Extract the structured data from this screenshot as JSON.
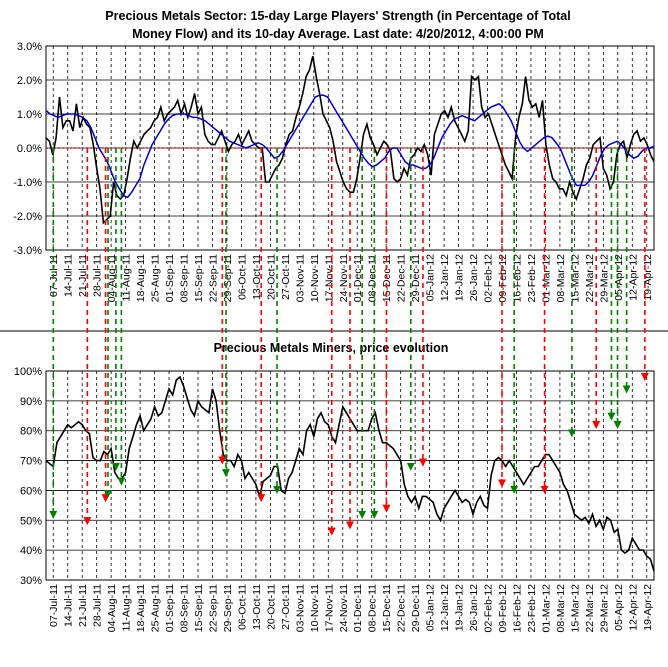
{
  "colors": {
    "strength": "#000000",
    "average": "#0000cc",
    "zero_line": "#cc0000",
    "red_arrow": "#ff0000",
    "green_arrow": "#008000",
    "grid": "#000000"
  },
  "chart_data": [
    {
      "type": "line",
      "title_line1": "Precious Metals Sector: 15-day Large Players' Strength (in Percentage of Total",
      "title_line2": "Money Flow) and its 10-day Average. Last date: 4/20/2012, 4:00:00 PM",
      "xlabel": "",
      "ylabel": "",
      "ylim": [
        -3,
        3
      ],
      "y_ticks": [
        "-3.0%",
        "-2.0%",
        "-1.0%",
        "0.0%",
        "1.0%",
        "2.0%",
        "3.0%"
      ],
      "x_ticks": [
        "07-Jul-11",
        "14-Jul-11",
        "21-Jul-11",
        "28-Jul-11",
        "04-Aug-11",
        "11-Aug-11",
        "18-Aug-11",
        "25-Aug-11",
        "01-Sep-11",
        "08-Sep-11",
        "15-Sep-11",
        "22-Sep-11",
        "29-Sep-11",
        "06-Oct-11",
        "13-Oct-11",
        "20-Oct-11",
        "27-Oct-11",
        "03-Nov-11",
        "10-Nov-11",
        "17-Nov-11",
        "24-Nov-11",
        "01-Dec-11",
        "08-Dec-11",
        "15-Dec-11",
        "22-Dec-11",
        "29-Dec-11",
        "05-Jan-12",
        "12-Jan-12",
        "19-Jan-12",
        "26-Jan-12",
        "02-Feb-12",
        "09-Feb-12",
        "16-Feb-12",
        "23-Feb-12",
        "01-Mar-12",
        "08-Mar-12",
        "15-Mar-12",
        "22-Mar-12",
        "29-Mar-12",
        "05-Apr-12",
        "12-Apr-12",
        "19-Apr-12"
      ],
      "series": [
        {
          "name": "",
          "color_key": "strength",
          "values": [
            0.3,
            0.2,
            -0.2,
            0.3,
            1.5,
            0.6,
            0.8,
            0.8,
            0.5,
            1.3,
            0.6,
            0.9,
            0.7,
            0.6,
            0.1,
            -0.6,
            -1.2,
            -2.2,
            -2.1,
            -2.0,
            -1.0,
            -1.4,
            -1.5,
            -1.4,
            -0.9,
            -0.3,
            0.2,
            0.0,
            0.2,
            0.4,
            0.5,
            0.6,
            0.8,
            0.9,
            1.2,
            0.8,
            1.0,
            1.1,
            1.2,
            1.4,
            1.0,
            1.3,
            0.9,
            1.2,
            1.6,
            1.0,
            1.2,
            0.4,
            0.2,
            0.1,
            0.1,
            0.3,
            0.5,
            0.2,
            -0.1,
            0.1,
            0.2,
            0.4,
            0.1,
            0.3,
            0.5,
            0.2,
            0.1,
            0.0,
            0.0,
            -1.0,
            -1.0,
            -0.8,
            -0.6,
            -0.5,
            -0.3,
            0.1,
            0.4,
            0.5,
            0.9,
            1.2,
            1.6,
            2.1,
            2.3,
            2.7,
            2.1,
            1.6,
            1.0,
            0.8,
            0.6,
            0.2,
            -0.4,
            -0.7,
            -1.0,
            -1.2,
            -1.3,
            -1.3,
            -0.9,
            -0.3,
            0.4,
            0.7,
            0.3,
            0.1,
            -0.2,
            0.0,
            0.2,
            0.1,
            -0.1,
            -0.9,
            -1.0,
            -0.9,
            -0.6,
            -0.8,
            -0.3,
            -0.2,
            0.0,
            -0.1,
            0.1,
            -0.2,
            -0.8,
            0.4,
            0.7,
            1.0,
            1.1,
            0.9,
            1.2,
            0.8,
            0.6,
            0.4,
            0.2,
            0.5,
            2.1,
            2.0,
            2.1,
            1.2,
            0.9,
            1.0,
            0.7,
            0.4,
            0.1,
            -0.2,
            -0.5,
            -0.7,
            -0.9,
            0.3,
            0.9,
            1.3,
            2.1,
            1.4,
            1.2,
            1.3,
            0.9,
            1.4,
            0.1,
            -0.5,
            -0.9,
            -1.0,
            -1.2,
            -1.2,
            -1.4,
            -1.0,
            -1.3,
            -1.5,
            -1.2,
            -0.9,
            -0.5,
            -0.3,
            0.1,
            0.2,
            0.3,
            -0.6,
            -0.8,
            -1.2,
            -1.0,
            -0.2,
            0.1,
            0.2,
            -0.3,
            0.1,
            0.4,
            0.5,
            0.2,
            0.3,
            0.1,
            -0.2,
            -0.4
          ]
        },
        {
          "name": "",
          "color_key": "average",
          "values": [
            1.1,
            1.0,
            0.95,
            0.9,
            0.95,
            1.0,
            1.0,
            1.0,
            0.95,
            0.9,
            0.8,
            0.6,
            0.3,
            0.0,
            -0.2,
            -0.4,
            -0.7,
            -1.0,
            -1.2,
            -1.4,
            -1.45,
            -1.3,
            -1.1,
            -0.9,
            -0.5,
            -0.2,
            0.1,
            0.3,
            0.5,
            0.7,
            0.85,
            0.95,
            1.0,
            1.0,
            1.0,
            0.95,
            0.9,
            0.9,
            0.85,
            0.8,
            0.7,
            0.6,
            0.5,
            0.4,
            0.3,
            0.2,
            0.15,
            0.1,
            0.05,
            0.0,
            0.05,
            0.1,
            0.15,
            0.1,
            0.0,
            -0.15,
            -0.3,
            -0.25,
            -0.1,
            0.1,
            0.3,
            0.5,
            0.7,
            0.9,
            1.1,
            1.3,
            1.5,
            1.55,
            1.55,
            1.5,
            1.3,
            1.1,
            0.9,
            0.7,
            0.5,
            0.3,
            0.1,
            -0.1,
            -0.3,
            -0.45,
            -0.55,
            -0.5,
            -0.4,
            -0.3,
            -0.1,
            0.0,
            0.0,
            -0.2,
            -0.4,
            -0.5,
            -0.5,
            -0.55,
            -0.6,
            -0.6,
            -0.5,
            -0.3,
            0.0,
            0.3,
            0.5,
            0.7,
            0.85,
            0.9,
            0.95,
            0.9,
            0.85,
            0.8,
            0.9,
            1.0,
            1.1,
            1.2,
            1.25,
            1.3,
            1.2,
            1.0,
            0.8,
            0.5,
            0.2,
            0.0,
            -0.1,
            0.0,
            0.1,
            0.2,
            0.3,
            0.35,
            0.3,
            0.15,
            0.0,
            -0.3,
            -0.6,
            -0.9,
            -1.1,
            -1.1,
            -1.1,
            -1.0,
            -0.8,
            -0.5,
            -0.2,
            0.0,
            0.1,
            0.15,
            0.2,
            0.1,
            -0.05,
            -0.2,
            -0.3,
            -0.25,
            -0.1,
            0.0,
            0.0,
            0.05
          ]
        }
      ],
      "reference_line": 0
    },
    {
      "type": "line",
      "title": "Precious Metals Miners, price evolution",
      "xlabel": "",
      "ylabel": "",
      "ylim": [
        30,
        100
      ],
      "y_ticks": [
        "30%",
        "40%",
        "50%",
        "60%",
        "70%",
        "80%",
        "90%",
        "100%"
      ],
      "x_ticks": [
        "07-Jul-11",
        "14-Jul-11",
        "21-Jul-11",
        "28-Jul-11",
        "04-Aug-11",
        "11-Aug-11",
        "18-Aug-11",
        "25-Aug-11",
        "01-Sep-11",
        "08-Sep-11",
        "15-Sep-11",
        "22-Sep-11",
        "29-Sep-11",
        "06-Oct-11",
        "13-Oct-11",
        "20-Oct-11",
        "27-Oct-11",
        "03-Nov-11",
        "10-Nov-11",
        "17-Nov-11",
        "24-Nov-11",
        "01-Dec-11",
        "08-Dec-11",
        "15-Dec-11",
        "22-Dec-11",
        "29-Dec-11",
        "05-Jan-12",
        "12-Jan-12",
        "19-Jan-12",
        "26-Jan-12",
        "02-Feb-12",
        "09-Feb-12",
        "16-Feb-12",
        "23-Feb-12",
        "01-Mar-12",
        "08-Mar-12",
        "15-Mar-12",
        "22-Mar-12",
        "29-Mar-12",
        "05-Apr-12",
        "12-Apr-12",
        "19-Apr-12"
      ],
      "series": [
        {
          "name": "",
          "color_key": "strength",
          "values": [
            70,
            69,
            68,
            76,
            78,
            80,
            82,
            81,
            82,
            83,
            82,
            80,
            79,
            71,
            70,
            70,
            73,
            72,
            74,
            66,
            64,
            64,
            66,
            74,
            78,
            82,
            85,
            80,
            82,
            84,
            88,
            85,
            86,
            90,
            94,
            92,
            97,
            98,
            95,
            91,
            87,
            85,
            90,
            88,
            87,
            86,
            94,
            90,
            80,
            72,
            70,
            70,
            68,
            72,
            70,
            64,
            66,
            64,
            62,
            58,
            63,
            64,
            65,
            68,
            68,
            60,
            59,
            64,
            66,
            70,
            74,
            72,
            80,
            82,
            78,
            84,
            86,
            83,
            82,
            78,
            76,
            82,
            88,
            86,
            84,
            82,
            80,
            80,
            80,
            80,
            84,
            86,
            80,
            76,
            76,
            75,
            74,
            72,
            70,
            62,
            58,
            56,
            58,
            54,
            58,
            58,
            57,
            56,
            52,
            50,
            54,
            56,
            58,
            60,
            58,
            56,
            57,
            56,
            52,
            56,
            58,
            55,
            54,
            65,
            70,
            71,
            70,
            68,
            70,
            68,
            66,
            64,
            62,
            64,
            66,
            68,
            68,
            70,
            72,
            72,
            70,
            68,
            66,
            62,
            60,
            56,
            52,
            51,
            50,
            51,
            49,
            52,
            48,
            50,
            47,
            51,
            50,
            46,
            47,
            40,
            39,
            40,
            44,
            42,
            40,
            40,
            38,
            37,
            33
          ]
        }
      ]
    }
  ]
}
